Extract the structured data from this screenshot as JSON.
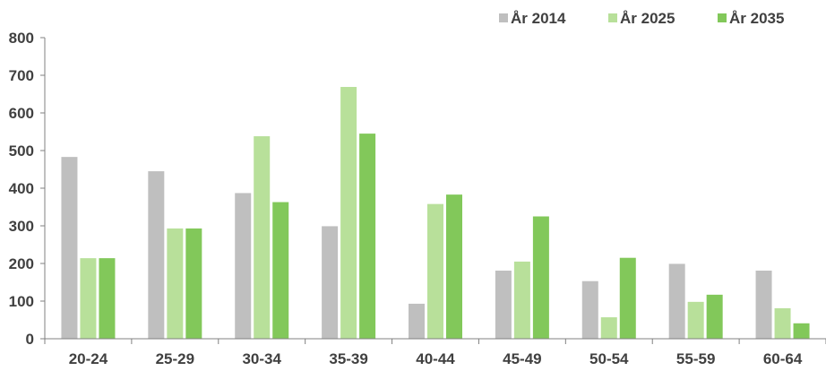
{
  "chart_data": {
    "type": "bar",
    "title": "",
    "xlabel": "",
    "ylabel": "",
    "categories": [
      "20-24",
      "25-29",
      "30-34",
      "35-39",
      "40-44",
      "45-49",
      "50-54",
      "55-59",
      "60-64"
    ],
    "series": [
      {
        "name": "År 2014",
        "color": "#BFBFBF",
        "values": [
          483,
          445,
          387,
          299,
          93,
          181,
          153,
          199,
          181
        ]
      },
      {
        "name": "År 2025",
        "color": "#B8E09A",
        "values": [
          214,
          293,
          538,
          669,
          358,
          205,
          57,
          98,
          81
        ]
      },
      {
        "name": "År 2035",
        "color": "#82C85A",
        "values": [
          214,
          293,
          363,
          545,
          383,
          325,
          215,
          117,
          41
        ]
      }
    ],
    "ylim": [
      0,
      800
    ],
    "yticks": [
      0,
      100,
      200,
      300,
      400,
      500,
      600,
      700,
      800
    ],
    "grid": false,
    "legend_position": "top-right",
    "axis_color": "#808080"
  }
}
